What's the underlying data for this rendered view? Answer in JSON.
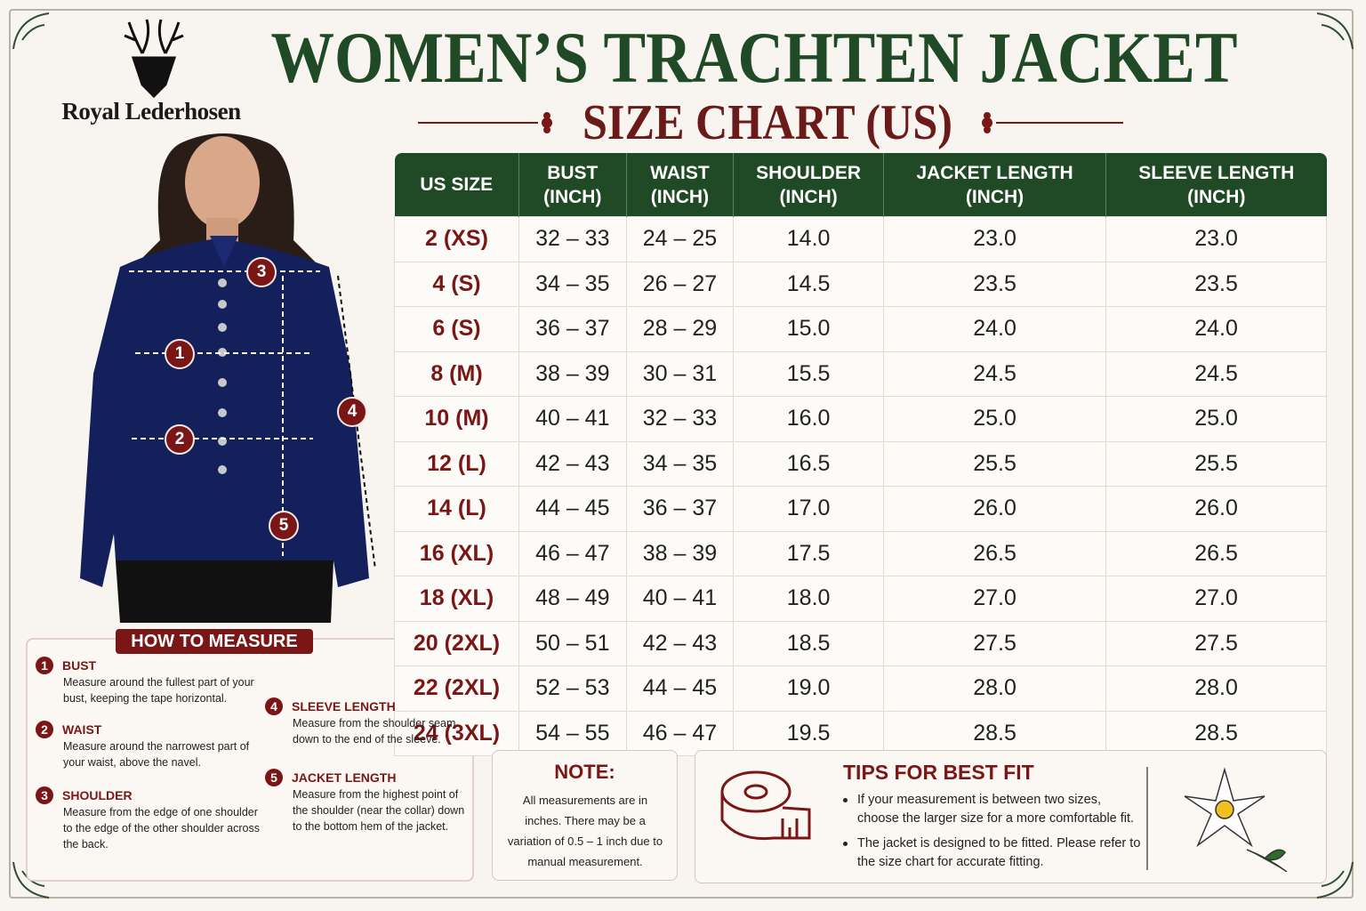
{
  "brand": "Royal Lederhosen",
  "title": "WOMEN’S TRACHTEN JACKET",
  "subtitle": "SIZE CHART (US)",
  "table": {
    "columns": [
      {
        "label": "US SIZE"
      },
      {
        "label": "BUST",
        "unit": "(INCH)"
      },
      {
        "label": "WAIST",
        "unit": "(INCH)"
      },
      {
        "label": "SHOULDER",
        "unit": "(INCH)"
      },
      {
        "label": "JACKET LENGTH",
        "unit": "(INCH)"
      },
      {
        "label": "SLEEVE LENGTH",
        "unit": "(INCH)"
      }
    ],
    "rows": [
      [
        "2 (XS)",
        "32 – 33",
        "24 – 25",
        "14.0",
        "23.0",
        "23.0"
      ],
      [
        "4 (S)",
        "34 – 35",
        "26 – 27",
        "14.5",
        "23.5",
        "23.5"
      ],
      [
        "6 (S)",
        "36 – 37",
        "28 – 29",
        "15.0",
        "24.0",
        "24.0"
      ],
      [
        "8 (M)",
        "38 – 39",
        "30 – 31",
        "15.5",
        "24.5",
        "24.5"
      ],
      [
        "10 (M)",
        "40 – 41",
        "32 – 33",
        "16.0",
        "25.0",
        "25.0"
      ],
      [
        "12 (L)",
        "42 – 43",
        "34 – 35",
        "16.5",
        "25.5",
        "25.5"
      ],
      [
        "14 (L)",
        "44 – 45",
        "36 – 37",
        "17.0",
        "26.0",
        "26.0"
      ],
      [
        "16 (XL)",
        "46 – 47",
        "38 – 39",
        "17.5",
        "26.5",
        "26.5"
      ],
      [
        "18 (XL)",
        "48 – 49",
        "40 – 41",
        "18.0",
        "27.0",
        "27.0"
      ],
      [
        "20 (2XL)",
        "50 – 51",
        "42 – 43",
        "18.5",
        "27.5",
        "27.5"
      ],
      [
        "22 (2XL)",
        "52 – 53",
        "44 – 45",
        "19.0",
        "28.0",
        "28.0"
      ],
      [
        "24 (3XL)",
        "54 – 55",
        "46 – 47",
        "19.5",
        "28.5",
        "28.5"
      ]
    ]
  },
  "how_to_measure": {
    "title": "HOW TO MEASURE",
    "items": [
      {
        "number": "1",
        "name": "BUST",
        "text": "Measure around the fullest part of your bust, keeping the tape horizontal."
      },
      {
        "number": "2",
        "name": "WAIST",
        "text": "Measure around the narrowest part of your waist, above the navel."
      },
      {
        "number": "3",
        "name": "SHOULDER",
        "text": "Measure from the edge of one shoulder to the edge of the other shoulder across the back."
      },
      {
        "number": "4",
        "name": "SLEEVE LENGTH",
        "text": "Measure from the shoulder seam down to the end of the sleeve."
      },
      {
        "number": "5",
        "name": "JACKET LENGTH",
        "text": "Measure from the highest point of the shoulder (near the collar) down to the bottom hem of the jacket."
      }
    ]
  },
  "note": {
    "title": "NOTE:",
    "text": "All measurements are in inches. There may be a variation of 0.5 – 1 inch due to manual measurement."
  },
  "tips": {
    "title": "TIPS FOR BEST FIT",
    "items": [
      "If your measurement is between two sizes, choose the larger size for a more comfortable fit.",
      "The jacket is designed to be fitted. Please refer to the size chart for accurate fitting."
    ]
  }
}
